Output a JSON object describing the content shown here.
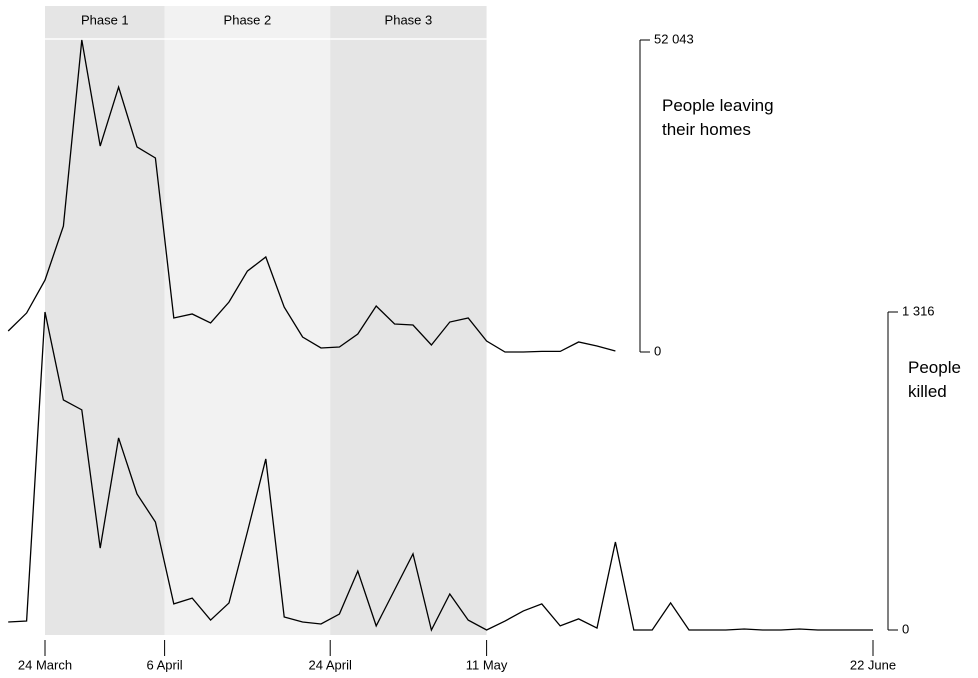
{
  "chart_data": {
    "type": "line",
    "phases": [
      {
        "label": "Phase 1",
        "start": 0,
        "end": 13,
        "color": "#e5e5e5"
      },
      {
        "label": "Phase 2",
        "start": 13,
        "end": 31,
        "color": "#f2f2f2"
      },
      {
        "label": "Phase 3",
        "start": 31,
        "end": 48,
        "color": "#e5e5e5"
      }
    ],
    "x": [
      -4,
      -2,
      0,
      2,
      4,
      6,
      8,
      10,
      12,
      14,
      16,
      18,
      20,
      22,
      24,
      26,
      28,
      30,
      32,
      34,
      36,
      38,
      40,
      42,
      44,
      46,
      48,
      50,
      52,
      54,
      56,
      58,
      60,
      62,
      64,
      66,
      68,
      70,
      72,
      74,
      76,
      78,
      80,
      82,
      84,
      86,
      88,
      90
    ],
    "xlim": [
      -4,
      92
    ],
    "xticks": [
      {
        "value": 0,
        "label": "24 March"
      },
      {
        "value": 13,
        "label": "6 April"
      },
      {
        "value": 31,
        "label": "24 April"
      },
      {
        "value": 48,
        "label": "11 May"
      },
      {
        "value": 90,
        "label": "22 June"
      }
    ],
    "series": [
      {
        "name": "People leaving their homes",
        "color": "#000000",
        "values": [
          3500,
          6500,
          12000,
          21000,
          52043,
          34360,
          44200,
          34200,
          32360,
          5670,
          6340,
          4840,
          8340,
          13500,
          15850,
          7500,
          2500,
          670,
          830,
          3000,
          7670,
          4670,
          4500,
          1170,
          5000,
          5670,
          1830,
          0,
          0,
          100,
          100,
          1670,
          1000,
          170,
          null,
          null,
          null,
          null,
          null,
          null,
          null,
          null,
          null,
          null,
          null,
          null,
          null,
          null
        ]
      },
      {
        "name": "People killed",
        "color": "#000000",
        "axis": "y2",
        "values": [
          33,
          37,
          1316,
          952,
          911,
          339,
          795,
          563,
          447,
          108,
          132,
          41,
          112,
          406,
          708,
          54,
          33,
          25,
          66,
          244,
          17,
          166,
          315,
          0,
          149,
          41,
          0,
          37,
          79,
          108,
          17,
          46,
          8,
          364,
          0,
          0,
          112,
          0,
          0,
          0,
          4,
          0,
          0,
          4,
          0,
          0,
          0,
          0
        ]
      }
    ],
    "ylim": [
      0,
      52043
    ],
    "yticks": [
      0,
      {
        "value": 52043,
        "label": "52 043"
      }
    ],
    "y2lim": [
      0,
      1316
    ],
    "y2ticks": [
      0,
      {
        "value": 1316,
        "label": "1 316"
      }
    ]
  }
}
